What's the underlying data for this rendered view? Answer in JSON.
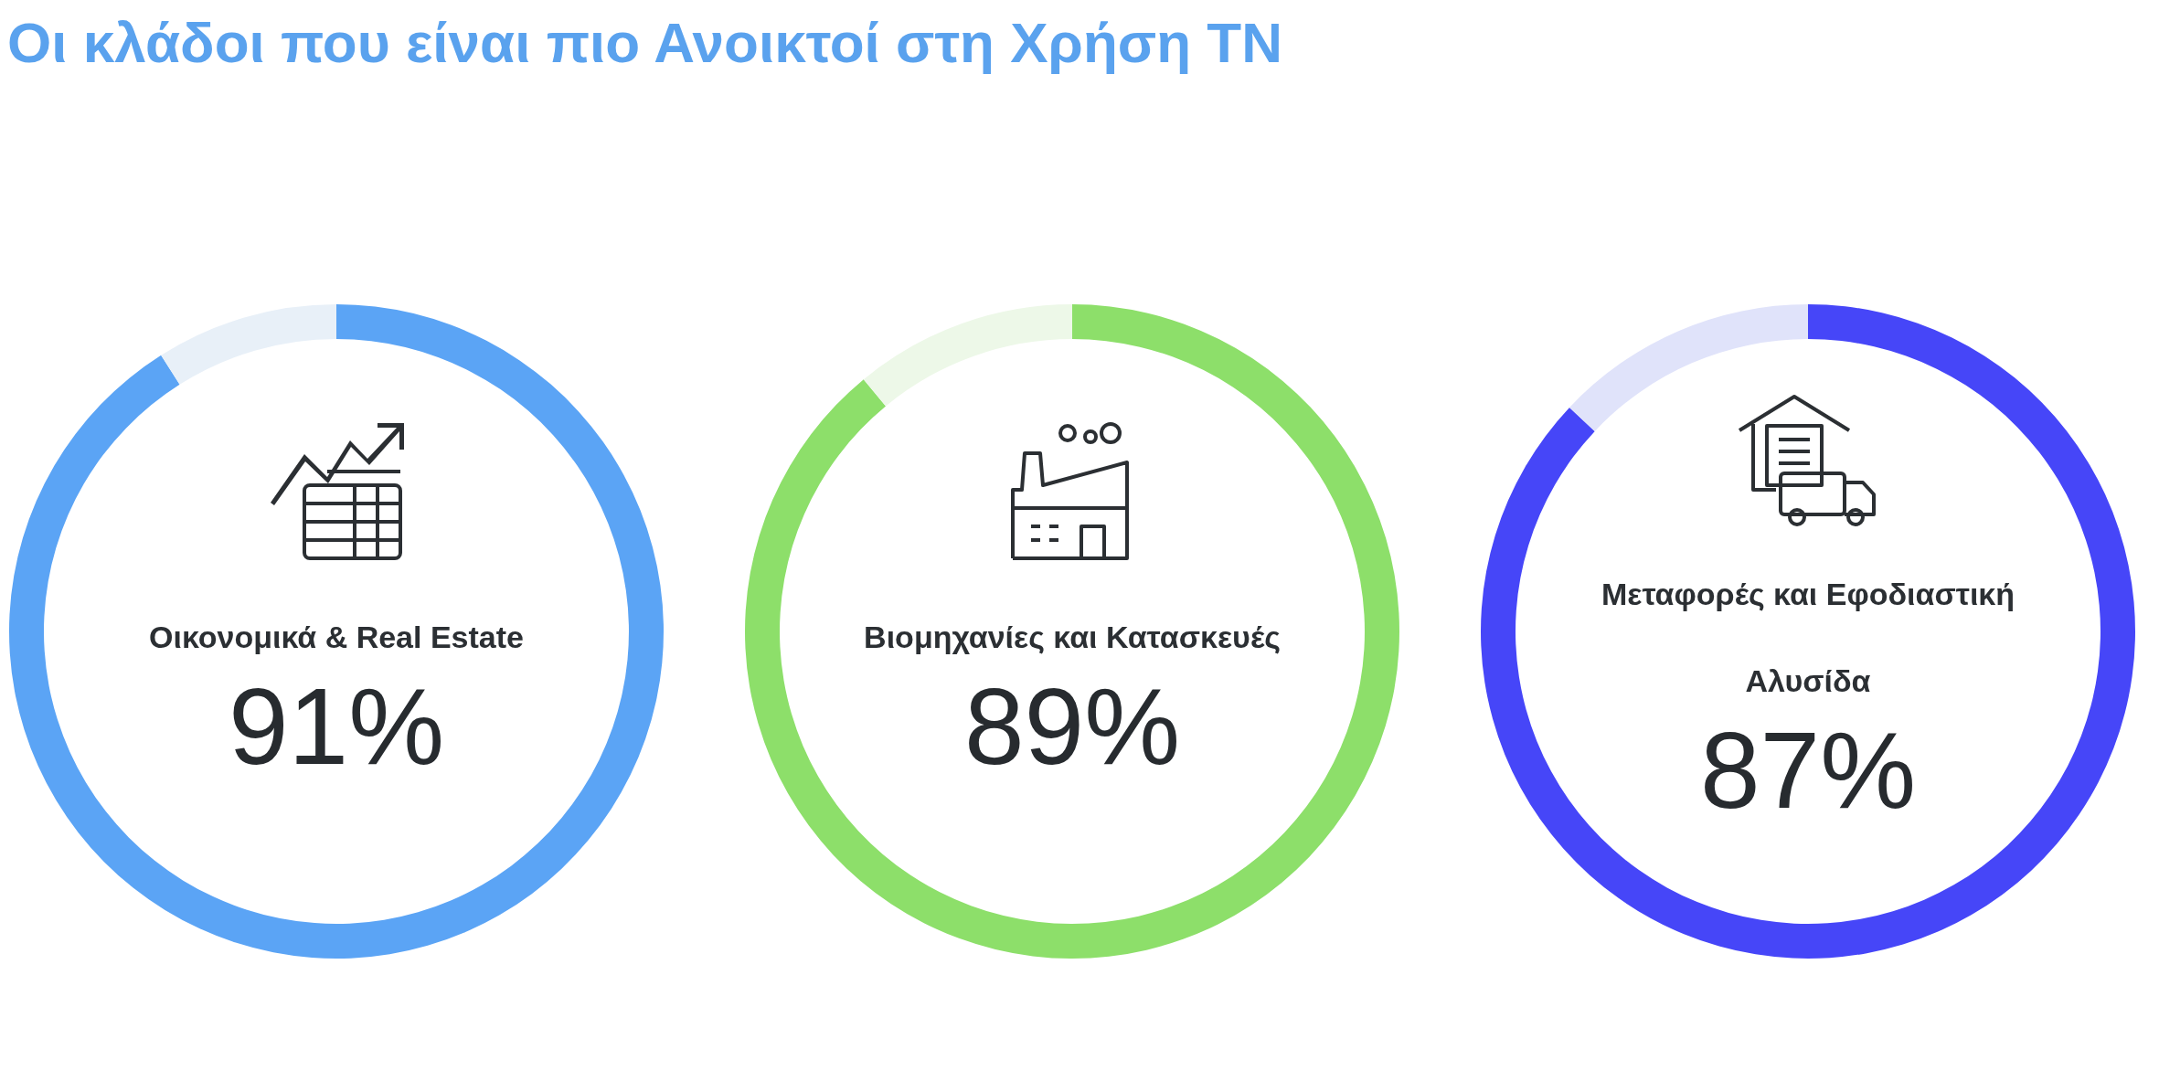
{
  "chart_data": [
    {
      "type": "donut",
      "title": "Οι κλάδοι που είναι πιο Ανοικτοί στη Χρήση ΤΝ",
      "categories": [
        "Οικονομικά & Real Estate",
        null
      ],
      "values": [
        91,
        9
      ],
      "colors": [
        "#5ba4f5",
        "#e8f0f8"
      ],
      "value_labels": [
        "91%",
        null
      ]
    },
    {
      "type": "donut",
      "categories": [
        "Βιομηχανίες και Κατασκευές",
        null
      ],
      "values": [
        89,
        11
      ],
      "colors": [
        "#8ddf6a",
        "#edf8e8"
      ],
      "value_labels": [
        "89%",
        null
      ]
    },
    {
      "type": "donut",
      "categories": [
        "Μεταφορές και Εφοδιαστική Αλυσίδα",
        null
      ],
      "values": [
        87,
        13
      ],
      "colors": [
        "#4646f8",
        "#e0e3fa"
      ],
      "value_labels": [
        "87%",
        null
      ]
    }
  ]
}
